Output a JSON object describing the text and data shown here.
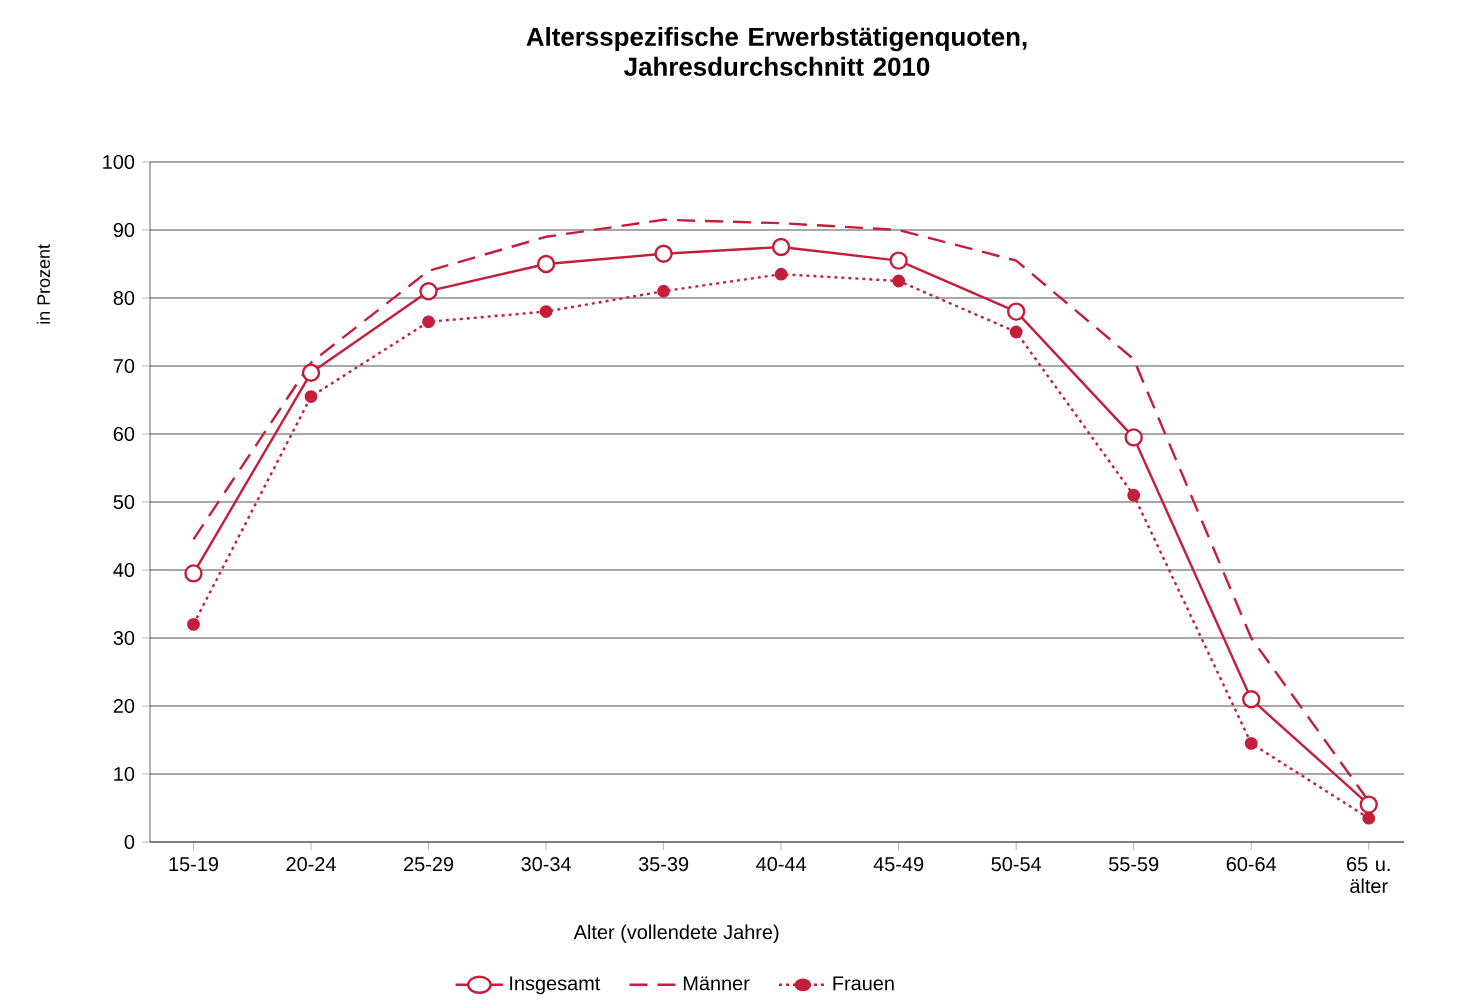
{
  "chart_data": {
    "type": "line",
    "title": "Altersspezifische Erwerbstätigenquoten, Jahresdurchschnitt 2010",
    "xlabel": "Alter (vollendete Jahre)",
    "ylabel": "in Prozent",
    "categories": [
      "15-19",
      "20-24",
      "25-29",
      "30-34",
      "35-39",
      "40-44",
      "45-49",
      "50-54",
      "55-59",
      "60-64",
      "65 u. älter"
    ],
    "ylim": [
      0,
      100
    ],
    "yticks": [
      0,
      10,
      20,
      30,
      40,
      50,
      60,
      70,
      80,
      90,
      100
    ],
    "grid": "y",
    "legend": "bottom",
    "series": [
      {
        "name": "Insgesamt",
        "color": "#c41e3a",
        "marker": "circle",
        "line_style": "solid",
        "values": [
          39.5,
          69,
          81,
          85,
          86.5,
          87.5,
          85.5,
          78,
          59.5,
          21,
          5.5
        ]
      },
      {
        "name": "Männer",
        "color": "#c41e3a",
        "marker": "none",
        "line_style": "dashed",
        "values": [
          44.5,
          70.5,
          84,
          89,
          91.5,
          91,
          90,
          85.5,
          71,
          30,
          6
        ]
      },
      {
        "name": "Frauen",
        "color": "#c41e3a",
        "marker": "circle",
        "line_style": "dotted",
        "values": [
          32,
          65.5,
          76.5,
          78,
          81,
          83.5,
          82.5,
          75,
          51,
          14.5,
          3.5
        ]
      }
    ]
  }
}
